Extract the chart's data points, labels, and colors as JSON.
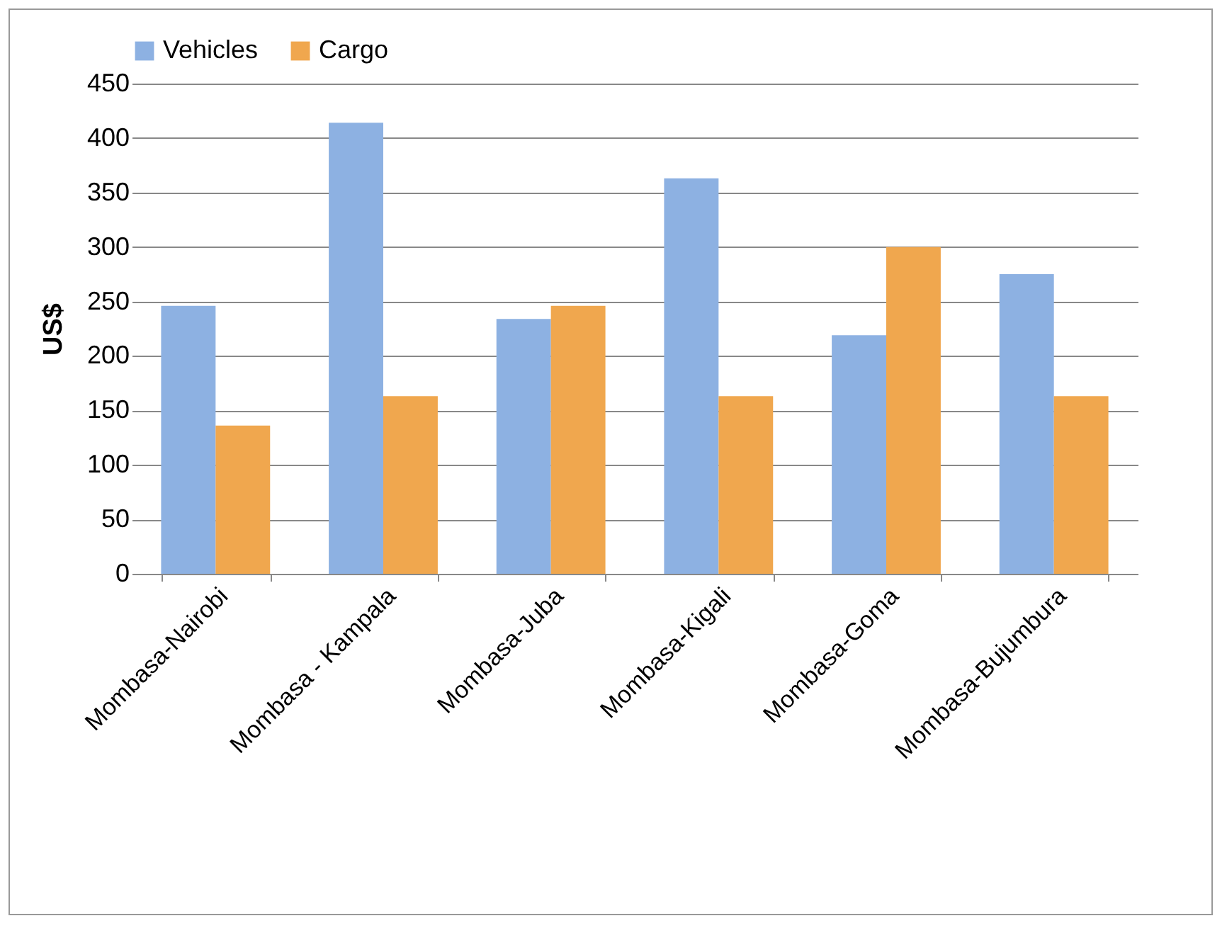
{
  "chart_data": {
    "type": "bar",
    "ylabel": "US$",
    "categories": [
      "Mombasa-Nairobi",
      "Mombasa - Kampala",
      "Mombasa-Juba",
      "Mombasa-Kigali",
      "Mombasa-Goma",
      "Mombasa-Bujumbura"
    ],
    "series": [
      {
        "name": "Vehicles",
        "color": "#8db1e2",
        "values": [
          246,
          414,
          234,
          363,
          219,
          275
        ]
      },
      {
        "name": "Cargo",
        "color": "#f0a74e",
        "values": [
          136,
          163,
          246,
          163,
          300,
          163
        ]
      }
    ],
    "ylim": [
      0,
      450
    ],
    "yticks": [
      0,
      50,
      100,
      150,
      200,
      250,
      300,
      350,
      400,
      450
    ],
    "grid": "y",
    "legend": "top"
  }
}
